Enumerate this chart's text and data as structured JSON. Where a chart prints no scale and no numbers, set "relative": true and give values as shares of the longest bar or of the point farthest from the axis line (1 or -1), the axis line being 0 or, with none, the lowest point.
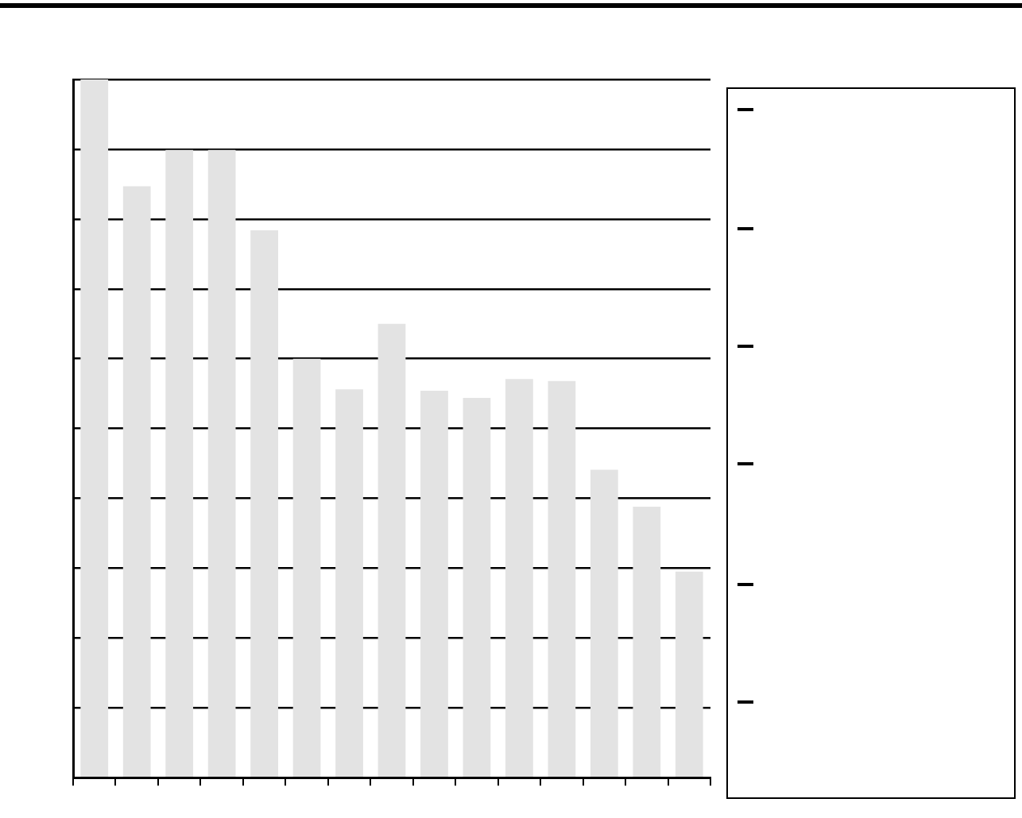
{
  "chart_data": {
    "type": "bar",
    "relative": true,
    "categories": [
      null,
      null,
      null,
      null,
      null,
      null,
      null,
      null,
      null,
      null,
      null,
      null,
      null,
      null,
      null
    ],
    "values": [
      1,
      0.847,
      0.899,
      0.899,
      0.784,
      0.6,
      0.556,
      0.65,
      0.554,
      0.544,
      0.571,
      0.568,
      0.441,
      0.388,
      0.295
    ],
    "color": "#e3e3e3",
    "grid": "y",
    "legend": false
  }
}
